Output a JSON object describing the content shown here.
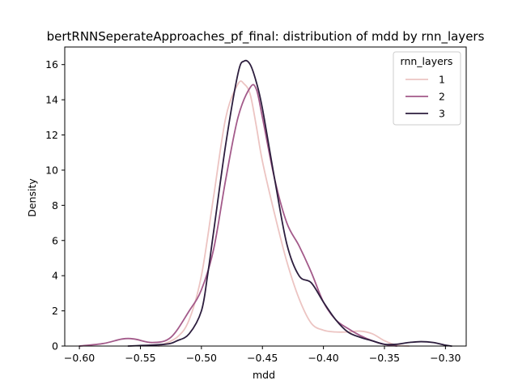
{
  "chart_data": {
    "type": "line",
    "title": "bertRNNSeperateApproaches_pf_final: distribution of mdd by rnn_layers",
    "xlabel": "mdd",
    "ylabel": "Density",
    "xlim": [
      -0.612,
      -0.283
    ],
    "ylim": [
      0,
      17
    ],
    "xticks": [
      -0.6,
      -0.55,
      -0.5,
      -0.45,
      -0.4,
      -0.35,
      -0.3
    ],
    "xtick_labels": [
      "−0.60",
      "−0.55",
      "−0.50",
      "−0.45",
      "−0.40",
      "−0.35",
      "−0.30"
    ],
    "yticks": [
      0,
      2,
      4,
      6,
      8,
      10,
      12,
      14,
      16
    ],
    "ytick_labels": [
      "0",
      "2",
      "4",
      "6",
      "8",
      "10",
      "12",
      "14",
      "16"
    ],
    "grid": false,
    "legend": {
      "title": "rnn_layers",
      "position": "top-right"
    },
    "series": [
      {
        "name": "1",
        "color": "#ecc4c2",
        "x": [
          -0.535,
          -0.52,
          -0.51,
          -0.5,
          -0.49,
          -0.48,
          -0.47,
          -0.465,
          -0.46,
          -0.455,
          -0.45,
          -0.44,
          -0.43,
          -0.42,
          -0.41,
          -0.4,
          -0.39,
          -0.38,
          -0.37,
          -0.36,
          -0.35,
          -0.34,
          -0.33
        ],
        "y": [
          0.0,
          0.5,
          1.5,
          4.0,
          8.5,
          13.0,
          14.9,
          14.9,
          14.3,
          12.5,
          10.5,
          7.5,
          4.8,
          2.7,
          1.3,
          0.9,
          0.8,
          0.8,
          0.85,
          0.7,
          0.3,
          0.05,
          0.0
        ]
      },
      {
        "name": "2",
        "color": "#a35a8a",
        "x": [
          -0.6,
          -0.58,
          -0.565,
          -0.555,
          -0.54,
          -0.525,
          -0.51,
          -0.5,
          -0.49,
          -0.48,
          -0.47,
          -0.46,
          -0.455,
          -0.45,
          -0.44,
          -0.43,
          -0.42,
          -0.41,
          -0.4,
          -0.39,
          -0.38,
          -0.37,
          -0.36,
          -0.35,
          -0.34
        ],
        "y": [
          0.0,
          0.15,
          0.4,
          0.4,
          0.2,
          0.5,
          2.0,
          3.2,
          5.5,
          9.5,
          13.0,
          14.7,
          14.6,
          13.0,
          9.5,
          7.0,
          5.7,
          4.2,
          2.5,
          1.5,
          1.0,
          0.6,
          0.3,
          0.1,
          0.0
        ]
      },
      {
        "name": "3",
        "color": "#2d1e3e",
        "x": [
          -0.56,
          -0.53,
          -0.52,
          -0.51,
          -0.5,
          -0.495,
          -0.49,
          -0.48,
          -0.47,
          -0.465,
          -0.46,
          -0.455,
          -0.45,
          -0.44,
          -0.43,
          -0.42,
          -0.41,
          -0.4,
          -0.39,
          -0.38,
          -0.37,
          -0.36,
          -0.35,
          -0.34,
          -0.33,
          -0.32,
          -0.31,
          -0.3,
          -0.295
        ],
        "y": [
          0.0,
          0.1,
          0.3,
          0.7,
          2.0,
          4.0,
          6.5,
          11.5,
          15.5,
          16.2,
          16.0,
          15.0,
          13.5,
          9.5,
          5.8,
          4.0,
          3.6,
          2.5,
          1.5,
          0.8,
          0.5,
          0.3,
          0.1,
          0.1,
          0.2,
          0.25,
          0.2,
          0.05,
          0.0
        ]
      }
    ]
  }
}
